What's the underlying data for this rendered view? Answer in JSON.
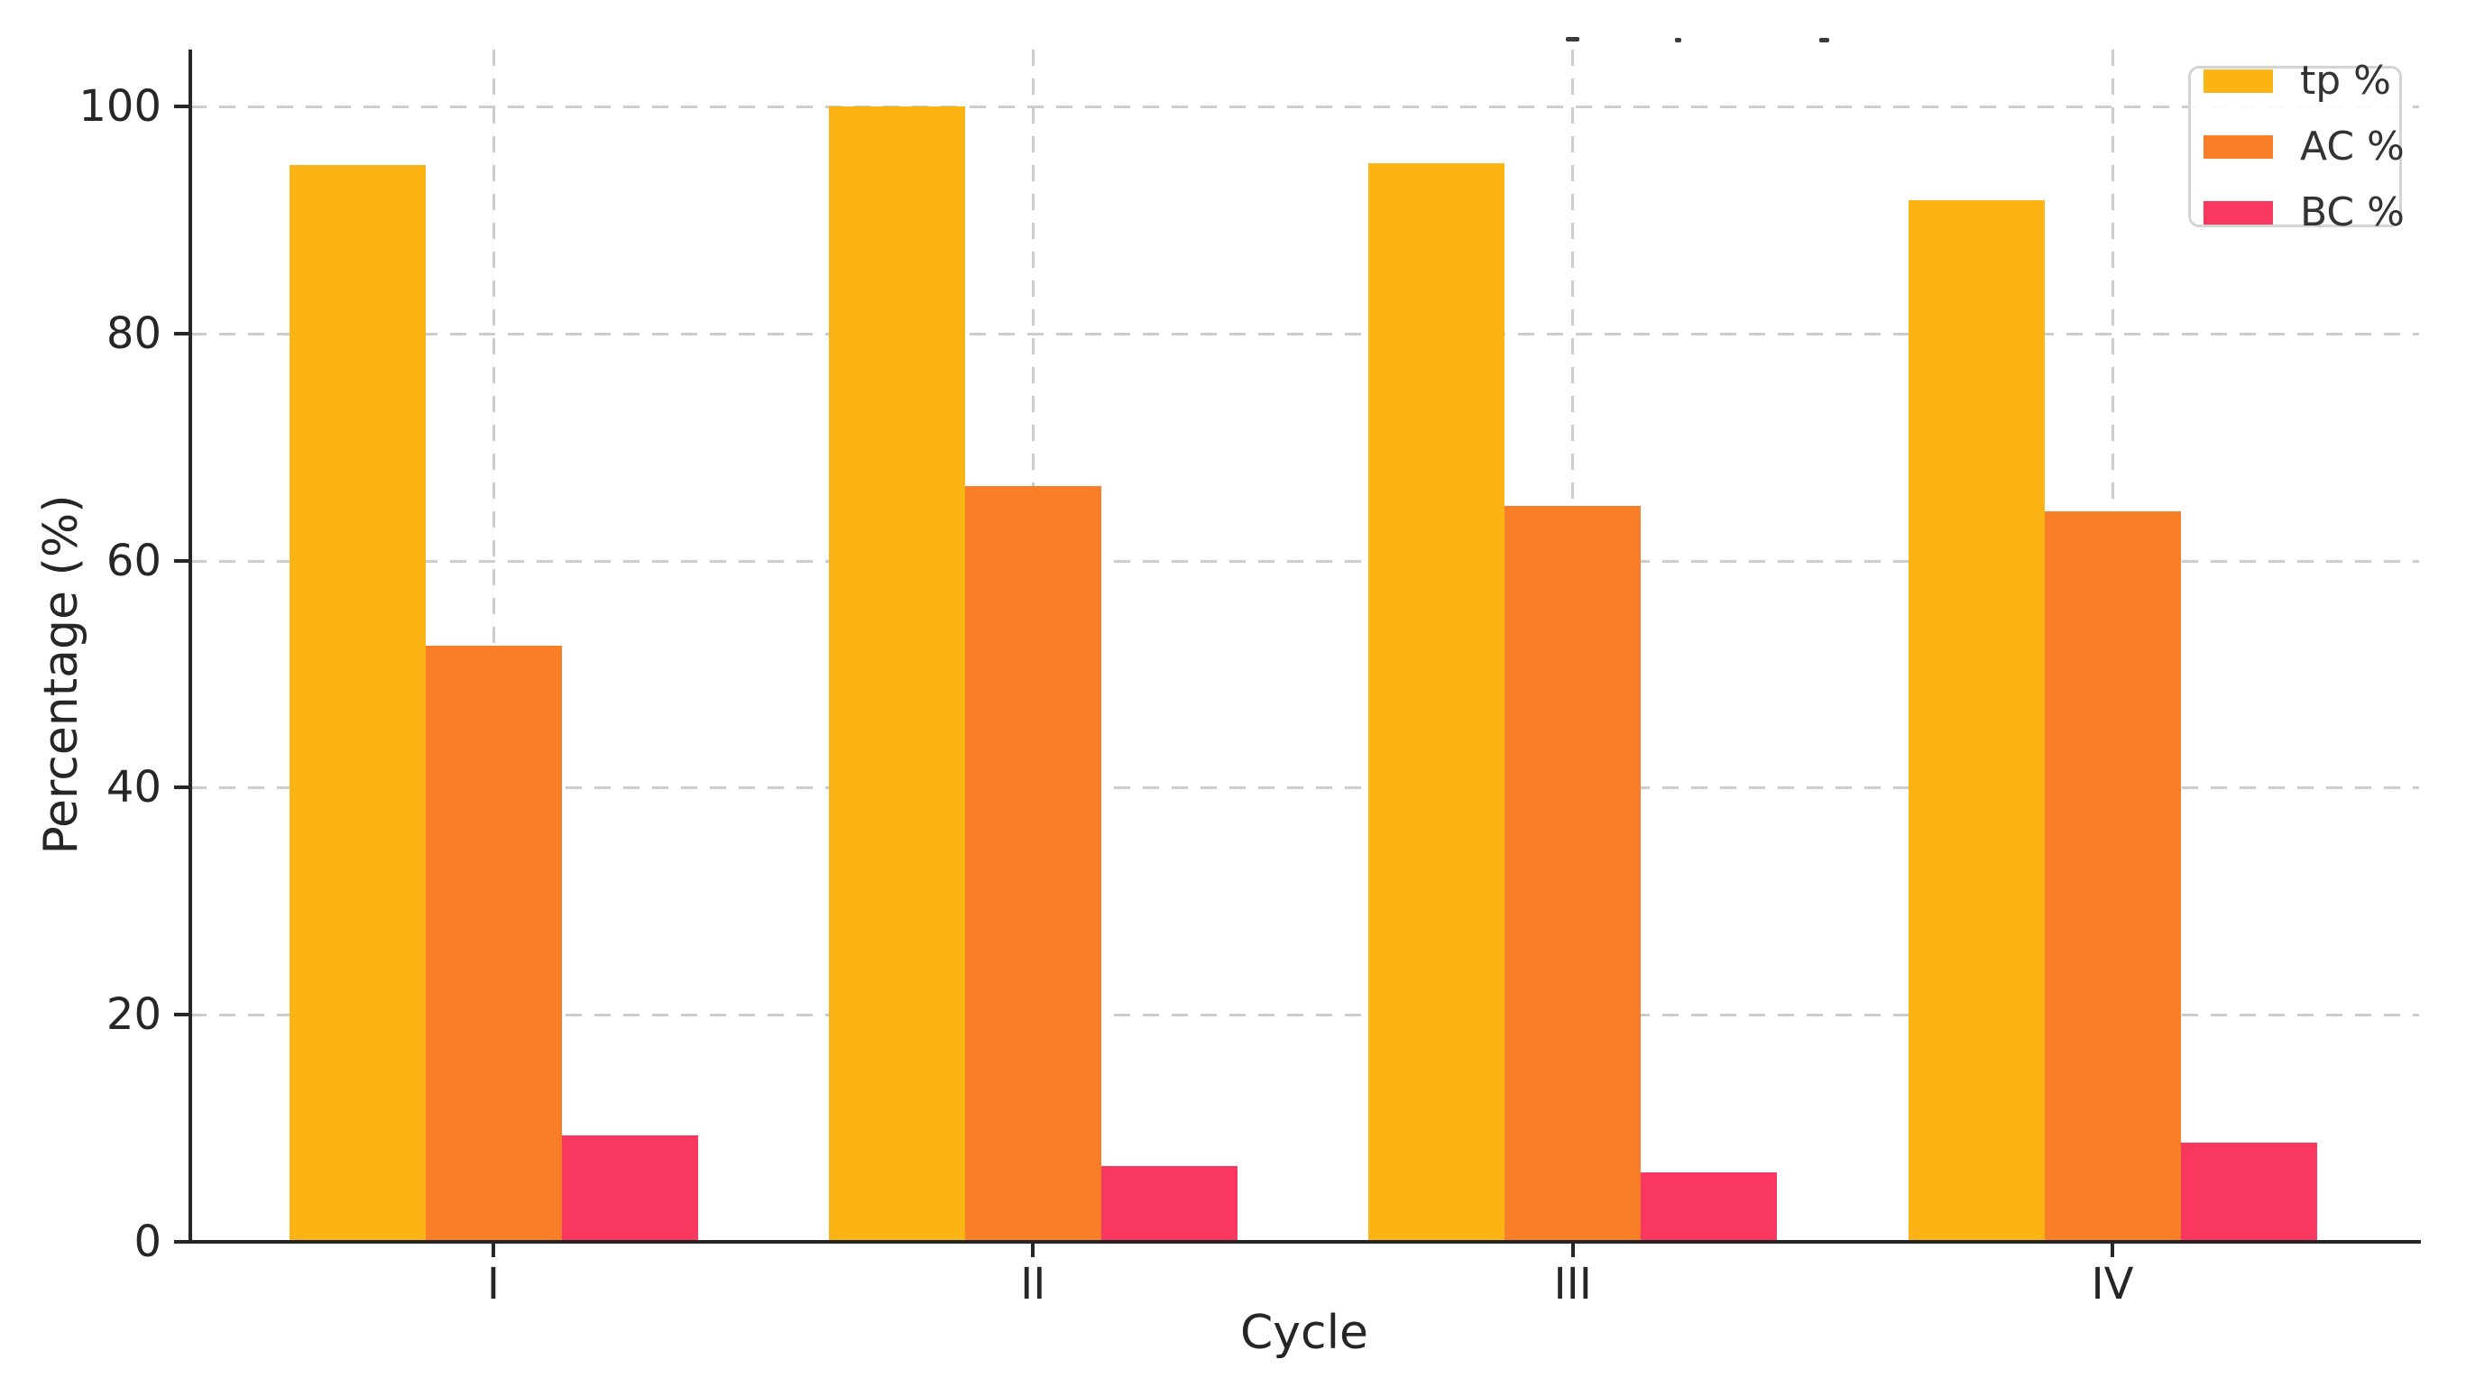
{
  "figure": {
    "background": "#ffffff",
    "axis_color": "#262626",
    "grid_color": "#cccccc",
    "text_color": "#262626"
  },
  "chart_data": {
    "type": "bar",
    "title": "",
    "xlabel": "Cycle",
    "ylabel": "Percentage (%)",
    "categories": [
      "I",
      "II",
      "III",
      "IV"
    ],
    "series": [
      {
        "name": "tp %",
        "color": "#FCB414",
        "values": [
          94.8,
          100.0,
          95.0,
          91.7
        ]
      },
      {
        "name": "AC %",
        "color": "#F87E27",
        "values": [
          52.5,
          66.6,
          64.8,
          64.3
        ]
      },
      {
        "name": "BC %",
        "color": "#F93860",
        "values": [
          9.4,
          6.7,
          6.1,
          8.7
        ]
      }
    ],
    "yticks": [
      0,
      20,
      40,
      60,
      80,
      100
    ],
    "ylim": [
      0,
      105
    ],
    "bar_width_ratio": 0.25,
    "grid": "both, dashed, behind bars",
    "legend": {
      "position": "top-right",
      "entries": [
        "tp %",
        "AC %",
        "BC %"
      ]
    }
  }
}
